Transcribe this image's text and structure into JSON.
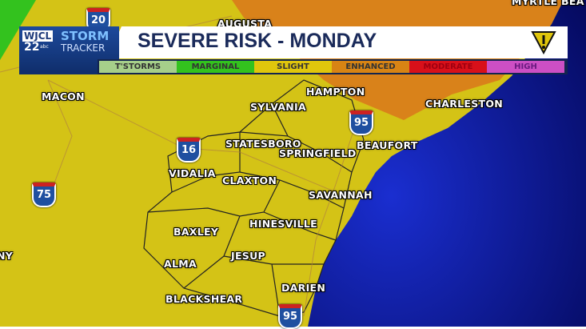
{
  "header": {
    "station": "WJCL",
    "channel": "22",
    "network": "abc",
    "brand_top": "STORM",
    "brand_bottom": "TRACKER",
    "title": "SEVERE RISK - MONDAY",
    "alert_icon": "warning-triangle-icon"
  },
  "legend": [
    {
      "label": "T'STORMS",
      "color": "#a6cf8a"
    },
    {
      "label": "MARGINAL",
      "color": "#33c21e"
    },
    {
      "label": "SLIGHT",
      "color": "#e0c60c"
    },
    {
      "label": "ENHANCED",
      "color": "#d88414"
    },
    {
      "label": "MODERATE",
      "color": "#d8101a"
    },
    {
      "label": "HIGH",
      "color": "#cc4fc4"
    }
  ],
  "risk_colors": {
    "slight": "#d4c316",
    "enhanced": "#d9821a",
    "ocean": "#0d1aa0"
  },
  "cities": [
    "AUGUSTA",
    "MYRTLE BEA",
    "MACON",
    "HAMPTON",
    "SYLVANIA",
    "CHARLESTON",
    "STATESBORO",
    "SPRINGFIELD",
    "BEAUFORT",
    "VIDALIA",
    "CLAXTON",
    "SAVANNAH",
    "HINESVILLE",
    "BAXLEY",
    "JESUP",
    "ALMA",
    "DARIEN",
    "BLACKSHEAR",
    "NY"
  ],
  "interstates": [
    "20",
    "16",
    "75",
    "95",
    "95"
  ]
}
